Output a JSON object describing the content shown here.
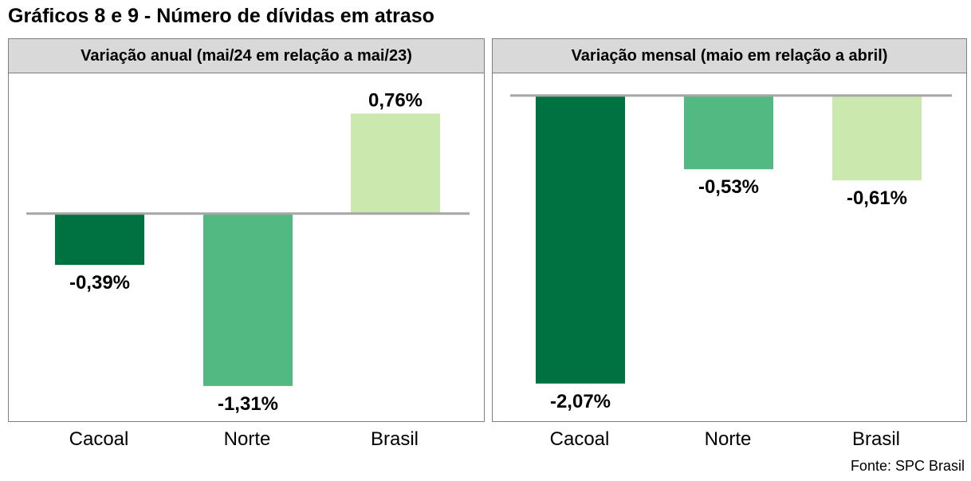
{
  "page": {
    "title": "Gráficos 8 e 9 - Número de dívidas em atraso",
    "source": "Fonte: SPC Brasil"
  },
  "colors": {
    "cacoal": "#007241",
    "norte": "#51b981",
    "brasil": "#cbe8ae",
    "axis": "#a6a6a6",
    "header_bg": "#d9d9d9",
    "border": "#7f7f7f"
  },
  "chart_data": [
    {
      "type": "bar",
      "title": "Variação anual (mai/24 em relação a mai/23)",
      "categories": [
        "Cacoal",
        "Norte",
        "Brasil"
      ],
      "values": [
        -0.39,
        -1.31,
        0.76
      ],
      "labels": [
        "-0,39%",
        "-1,31%",
        "0,76%"
      ],
      "series_colors": [
        "#007241",
        "#51b981",
        "#cbe8ae"
      ],
      "ylim": [
        -1.45,
        0.95
      ],
      "grid": false,
      "legend": "none"
    },
    {
      "type": "bar",
      "title": "Variação mensal (maio em relação a abril)",
      "categories": [
        "Cacoal",
        "Norte",
        "Brasil"
      ],
      "values": [
        -2.07,
        -0.53,
        -0.61
      ],
      "labels": [
        "-2,07%",
        "-0,53%",
        "-0,61%"
      ],
      "series_colors": [
        "#007241",
        "#51b981",
        "#cbe8ae"
      ],
      "ylim": [
        -2.22,
        0.05
      ],
      "grid": false,
      "legend": "none"
    }
  ]
}
